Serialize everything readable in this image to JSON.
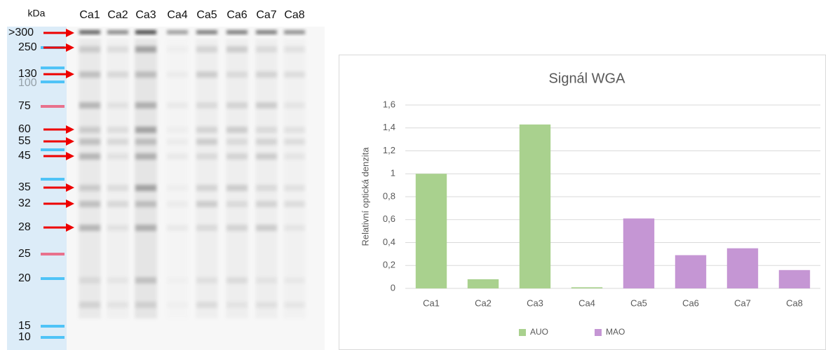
{
  "blot": {
    "unit": "kDa",
    "lanes": [
      "Ca1",
      "Ca2",
      "Ca3",
      "Ca4",
      "Ca5",
      "Ca6",
      "Ca7",
      "Ca8"
    ],
    "markers": [
      ">300",
      "250",
      "130",
      "100",
      "75",
      "60",
      "55",
      "45",
      "35",
      "32",
      "28",
      "25",
      "20",
      "15",
      "10"
    ]
  },
  "chart_data": {
    "type": "bar",
    "title": "Signál WGA",
    "y_label": "Relativní optická denzita",
    "categories": [
      "Ca1",
      "Ca2",
      "Ca3",
      "Ca4",
      "Ca5",
      "Ca6",
      "Ca7",
      "Ca8"
    ],
    "series": [
      {
        "name": "AUO",
        "color": "#a9d18e",
        "values": [
          1,
          0.08,
          1.43,
          0.01,
          null,
          null,
          null,
          null
        ]
      },
      {
        "name": "MAO",
        "color": "#c596d4",
        "values": [
          null,
          null,
          null,
          null,
          0.61,
          0.29,
          0.35,
          0.16
        ]
      }
    ],
    "ylim": [
      0,
      1.6
    ],
    "yticks": [
      0,
      {
        "value": 0.2,
        "label": "0,2"
      },
      {
        "value": 0.4,
        "label": "0,4"
      },
      {
        "value": 0.6,
        "label": "0,6"
      },
      {
        "value": 0.8,
        "label": "0,8"
      },
      1,
      {
        "value": 1.2,
        "label": "1,2"
      },
      {
        "value": 1.4,
        "label": "1,4"
      },
      {
        "value": 1.6,
        "label": "1,6"
      }
    ],
    "grid": true,
    "legend": "bottom"
  }
}
